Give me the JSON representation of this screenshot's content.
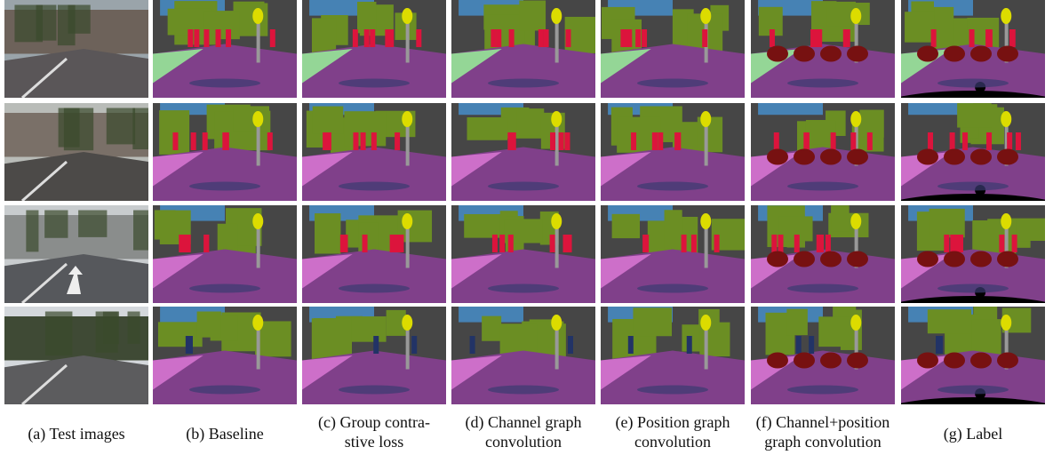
{
  "figure": {
    "columns": [
      {
        "caption": [
          "(a) Test images"
        ]
      },
      {
        "caption": [
          "(b) Baseline"
        ]
      },
      {
        "caption": [
          "(c) Group contra-",
          "stive loss"
        ]
      },
      {
        "caption": [
          "(d) Channel graph",
          "convolution"
        ]
      },
      {
        "caption": [
          "(e) Position graph",
          "convolution"
        ]
      },
      {
        "caption": [
          "(f) Channel+position",
          "graph convolution"
        ]
      },
      {
        "caption": [
          "(g) Label"
        ]
      }
    ]
  }
}
